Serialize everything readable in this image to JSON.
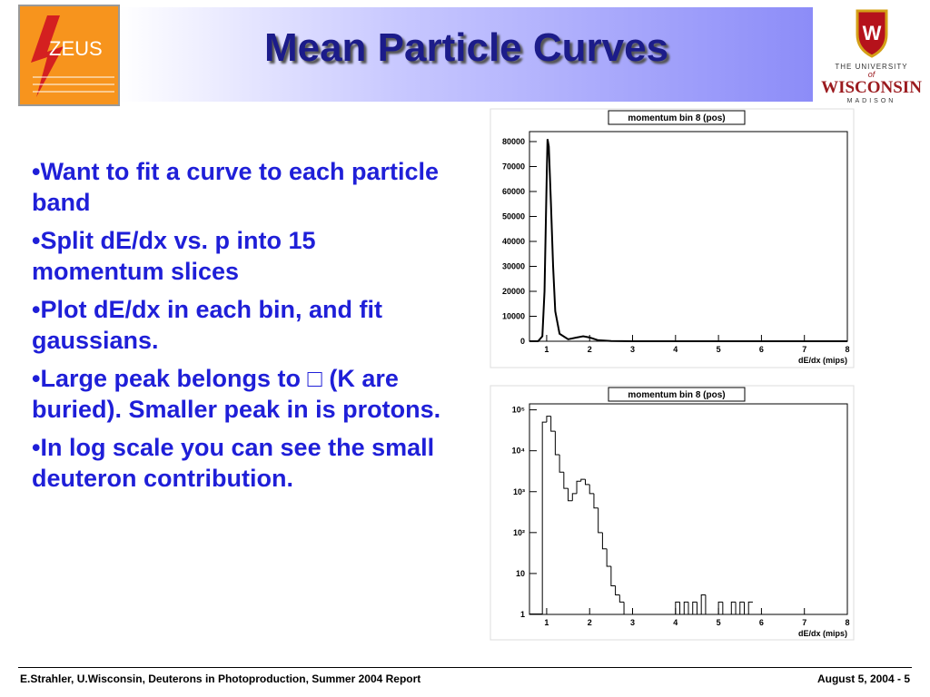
{
  "header": {
    "title": "Mean Particle Curves",
    "logo_left": "ZEUS",
    "logo_right": [
      "THE UNIVERSITY",
      "of",
      "WISCONSIN",
      "MADISON"
    ]
  },
  "bullets": [
    "Want to fit a curve to each particle band",
    "Split dE/dx vs. p into 15 momentum slices",
    "Plot dE/dx in each bin, and fit gaussians.",
    "Large peak belongs to □ (K are buried).  Smaller peak in is protons.",
    "In log scale you can see the small deuteron contribution."
  ],
  "bullet_mark": "•",
  "footer": {
    "left": "E.Strahler, U.Wisconsin, Deuterons in Photoproduction, Summer 2004 Report",
    "right": "August 5, 2004  -  5"
  },
  "chart_data": [
    {
      "type": "line",
      "title": "momentum bin 8 (pos)",
      "x_label": "dE/dx (mips)",
      "color": "#000000",
      "x": [
        0.6,
        0.8,
        0.9,
        0.95,
        1.0,
        1.02,
        1.05,
        1.1,
        1.15,
        1.2,
        1.3,
        1.5,
        1.7,
        1.85,
        2.0,
        2.2,
        2.5,
        3,
        8
      ],
      "values": [
        0,
        0,
        2000,
        20000,
        65000,
        81000,
        78000,
        55000,
        30000,
        12000,
        3000,
        800,
        1500,
        2000,
        1500,
        400,
        100,
        0,
        0
      ],
      "xlim": [
        0.6,
        8
      ],
      "xticks": [
        1,
        2,
        3,
        4,
        5,
        6,
        7,
        8
      ],
      "ylim": [
        0,
        84000
      ],
      "yticks": [
        0,
        10000,
        20000,
        30000,
        40000,
        50000,
        60000,
        70000,
        80000
      ]
    },
    {
      "type": "histogram",
      "title": "momentum bin 8 (pos)",
      "x_label": "dE/dx (mips)",
      "color": "#000000",
      "log_scale": true,
      "bins": [
        0.9,
        1.0,
        1.1,
        1.2,
        1.3,
        1.4,
        1.5,
        1.6,
        1.7,
        1.8,
        1.9,
        2.0,
        2.1,
        2.2,
        2.3,
        2.4,
        2.5,
        2.6,
        2.7,
        2.8,
        2.9,
        3.0,
        3.1,
        3.2,
        3.3,
        3.4,
        3.5,
        3.6,
        3.7,
        3.8,
        3.9,
        4.0,
        4.1,
        4.2,
        4.3,
        4.4,
        4.5,
        4.6,
        4.7,
        4.8,
        4.9,
        5.0,
        5.1,
        5.2,
        5.3,
        5.4,
        5.5,
        5.6,
        5.7,
        5.8
      ],
      "values": [
        50000,
        70000,
        30000,
        8000,
        3000,
        1200,
        600,
        900,
        1800,
        2000,
        1500,
        900,
        400,
        100,
        40,
        15,
        5,
        3,
        2,
        1,
        0,
        0,
        0,
        0,
        0,
        0,
        0,
        0,
        0,
        0,
        0,
        2,
        0,
        2,
        0,
        2,
        0,
        3,
        0,
        0,
        0,
        2,
        0,
        0,
        2,
        0,
        2,
        0,
        2
      ],
      "xlim": [
        0.6,
        8
      ],
      "xticks": [
        1,
        2,
        3,
        4,
        5,
        6,
        7,
        8
      ],
      "ylim": [
        1,
        140000
      ],
      "yticks": [
        1,
        10,
        {
          "value": 100,
          "label": "10²"
        },
        {
          "value": 1000,
          "label": "10³"
        },
        {
          "value": 10000,
          "label": "10⁴"
        },
        {
          "value": 100000,
          "label": "10⁵"
        }
      ]
    }
  ]
}
